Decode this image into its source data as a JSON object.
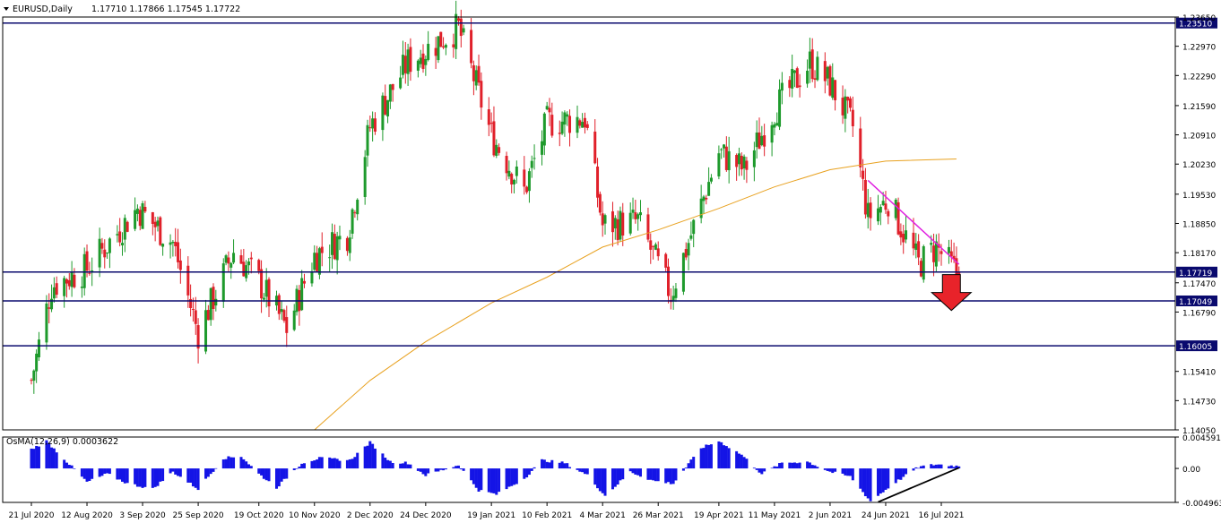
{
  "header": {
    "symbol": "EURUSD,Daily",
    "ohlc": "1.17710 1.17866 1.17545 1.17722"
  },
  "chart_data": [
    {
      "type": "candlestick",
      "title": "EURUSD,Daily",
      "ylim": [
        1.1405,
        1.2365
      ],
      "y_ticks": [
        "1.23650",
        "1.22970",
        "1.22290",
        "1.21590",
        "1.20910",
        "1.20230",
        "1.19530",
        "1.18850",
        "1.18170",
        "1.17470",
        "1.16790",
        "1.15410",
        "1.14730",
        "1.14050"
      ],
      "x_ticks": [
        "21 Jul 2020",
        "12 Aug 2020",
        "3 Sep 2020",
        "25 Sep 2020",
        "19 Oct 2020",
        "10 Nov 2020",
        "2 Dec 2020",
        "24 Dec 2020",
        "19 Jan 2021",
        "10 Feb 2021",
        "4 Mar 2021",
        "26 Mar 2021",
        "19 Apr 2021",
        "11 May 2021",
        "2 Jun 2021",
        "24 Jun 2021",
        "16 Jul 2021"
      ],
      "price_series_anchor_closes": [
        {
          "date": "21 Jul 2020",
          "value": 1.152
        },
        {
          "date": "29 Jul 2020",
          "value": 1.174
        },
        {
          "date": "12 Aug 2020",
          "value": 1.178
        },
        {
          "date": "1 Sep 2020",
          "value": 1.192
        },
        {
          "date": "15 Sep 2020",
          "value": 1.184
        },
        {
          "date": "25 Sep 2020",
          "value": 1.163
        },
        {
          "date": "9 Oct 2020",
          "value": 1.182
        },
        {
          "date": "19 Oct 2020",
          "value": 1.175
        },
        {
          "date": "30 Oct 2020",
          "value": 1.164
        },
        {
          "date": "10 Nov 2020",
          "value": 1.181
        },
        {
          "date": "23 Nov 2020",
          "value": 1.186
        },
        {
          "date": "2 Dec 2020",
          "value": 1.211
        },
        {
          "date": "17 Dec 2020",
          "value": 1.226
        },
        {
          "date": "6 Jan 2021",
          "value": 1.234
        },
        {
          "date": "19 Jan 2021",
          "value": 1.209
        },
        {
          "date": "1 Feb 2021",
          "value": 1.196
        },
        {
          "date": "10 Feb 2021",
          "value": 1.212
        },
        {
          "date": "25 Feb 2021",
          "value": 1.213
        },
        {
          "date": "4 Mar 2021",
          "value": 1.188
        },
        {
          "date": "18 Mar 2021",
          "value": 1.189
        },
        {
          "date": "31 Mar 2021",
          "value": 1.172
        },
        {
          "date": "19 Apr 2021",
          "value": 1.205
        },
        {
          "date": "29 Apr 2021",
          "value": 1.201
        },
        {
          "date": "11 May 2021",
          "value": 1.215
        },
        {
          "date": "25 May 2021",
          "value": 1.226
        },
        {
          "date": "2 Jun 2021",
          "value": 1.221
        },
        {
          "date": "11 Jun 2021",
          "value": 1.211
        },
        {
          "date": "17 Jun 2021",
          "value": 1.19
        },
        {
          "date": "25 Jun 2021",
          "value": 1.194
        },
        {
          "date": "7 Jul 2021",
          "value": 1.179
        },
        {
          "date": "14 Jul 2021",
          "value": 1.183
        },
        {
          "date": "22 Jul 2021",
          "value": 1.177
        }
      ],
      "moving_average_color": "#e8a11f",
      "moving_average_points": [
        {
          "date": "10 Nov 2020",
          "value": 1.1405
        },
        {
          "date": "2 Dec 2020",
          "value": 1.152
        },
        {
          "date": "24 Dec 2020",
          "value": 1.161
        },
        {
          "date": "19 Jan 2021",
          "value": 1.17
        },
        {
          "date": "10 Feb 2021",
          "value": 1.176
        },
        {
          "date": "4 Mar 2021",
          "value": 1.183
        },
        {
          "date": "26 Mar 2021",
          "value": 1.187
        },
        {
          "date": "19 Apr 2021",
          "value": 1.192
        },
        {
          "date": "11 May 2021",
          "value": 1.197
        },
        {
          "date": "2 Jun 2021",
          "value": 1.201
        },
        {
          "date": "24 Jun 2021",
          "value": 1.203
        },
        {
          "date": "22 Jul 2021",
          "value": 1.2035
        }
      ],
      "horizontal_levels": [
        {
          "value": 1.2351,
          "label": "1.23510"
        },
        {
          "value": 1.17719,
          "label": "1.17719"
        },
        {
          "value": 1.17049,
          "label": "1.17049"
        },
        {
          "value": 1.16005,
          "label": "1.16005"
        }
      ],
      "trendline": {
        "color": "#e020e0",
        "from": {
          "date": "17 Jun 2021",
          "value": 1.1985
        },
        "to": {
          "date": "23 Jul 2021",
          "value": 1.179
        }
      },
      "annotation": {
        "type": "arrow-down",
        "color": "#e8232a",
        "date": "20 Jul 2021"
      },
      "bull_color": "#1e9a2c",
      "bear_color": "#e0202a"
    },
    {
      "type": "histogram",
      "title": "OsMA(12,26,9) 0.0003622",
      "ylim": [
        -0.004963,
        0.004591
      ],
      "y_ticks": [
        "0.004591",
        "0.00",
        "-0.004963"
      ],
      "bar_color": "#1414e6",
      "anchor_values": [
        {
          "date": "21 Jul 2020",
          "value": 0.0028
        },
        {
          "date": "27 Jul 2020",
          "value": 0.004
        },
        {
          "date": "4 Aug 2020",
          "value": 0.001
        },
        {
          "date": "12 Aug 2020",
          "value": -0.002
        },
        {
          "date": "20 Aug 2020",
          "value": -0.0008
        },
        {
          "date": "28 Aug 2020",
          "value": -0.0022
        },
        {
          "date": "7 Sep 2020",
          "value": -0.003
        },
        {
          "date": "15 Sep 2020",
          "value": -0.0005
        },
        {
          "date": "25 Sep 2020",
          "value": -0.003
        },
        {
          "date": "5 Oct 2020",
          "value": 0.0015
        },
        {
          "date": "12 Oct 2020",
          "value": 0.0018
        },
        {
          "date": "19 Oct 2020",
          "value": -0.0008
        },
        {
          "date": "26 Oct 2020",
          "value": -0.0028
        },
        {
          "date": "5 Nov 2020",
          "value": 0.0008
        },
        {
          "date": "12 Nov 2020",
          "value": 0.0015
        },
        {
          "date": "24 Nov 2020",
          "value": 0.0012
        },
        {
          "date": "2 Dec 2020",
          "value": 0.0038
        },
        {
          "date": "10 Dec 2020",
          "value": 0.001
        },
        {
          "date": "17 Dec 2020",
          "value": 0.0008
        },
        {
          "date": "24 Dec 2020",
          "value": -0.001
        },
        {
          "date": "6 Jan 2021",
          "value": 0.0005
        },
        {
          "date": "14 Jan 2021",
          "value": -0.0032
        },
        {
          "date": "21 Jan 2021",
          "value": -0.0038
        },
        {
          "date": "1 Feb 2021",
          "value": -0.0015
        },
        {
          "date": "8 Feb 2021",
          "value": 0.0012
        },
        {
          "date": "17 Feb 2021",
          "value": 0.0008
        },
        {
          "date": "26 Feb 2021",
          "value": -0.001
        },
        {
          "date": "5 Mar 2021",
          "value": -0.004
        },
        {
          "date": "15 Mar 2021",
          "value": -0.0005
        },
        {
          "date": "24 Mar 2021",
          "value": -0.0018
        },
        {
          "date": "1 Apr 2021",
          "value": -0.0022
        },
        {
          "date": "12 Apr 2021",
          "value": 0.003
        },
        {
          "date": "19 Apr 2021",
          "value": 0.004
        },
        {
          "date": "28 Apr 2021",
          "value": 0.002
        },
        {
          "date": "6 May 2021",
          "value": -0.0008
        },
        {
          "date": "14 May 2021",
          "value": 0.0008
        },
        {
          "date": "24 May 2021",
          "value": 0.001
        },
        {
          "date": "2 Jun 2021",
          "value": -0.0005
        },
        {
          "date": "10 Jun 2021",
          "value": -0.0012
        },
        {
          "date": "18 Jun 2021",
          "value": -0.0048
        },
        {
          "date": "28 Jun 2021",
          "value": -0.002
        },
        {
          "date": "7 Jul 2021",
          "value": 0.0002
        },
        {
          "date": "14 Jul 2021",
          "value": 0.0006
        },
        {
          "date": "22 Jul 2021",
          "value": 0.00036
        }
      ],
      "trendline": {
        "color": "#000000",
        "from": {
          "date": "21 Jun 2021",
          "value": -0.0049
        },
        "to": {
          "date": "23 Jul 2021",
          "value": 0.0001
        }
      }
    }
  ]
}
